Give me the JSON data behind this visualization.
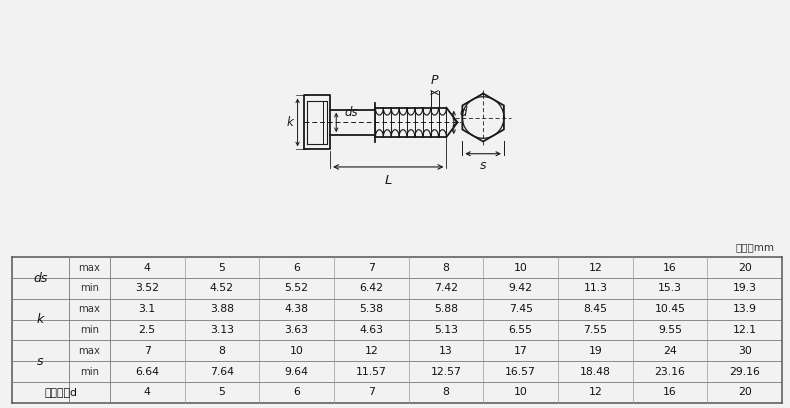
{
  "bg_color": "#f2f2f2",
  "line_color": "#1a1a1a",
  "unit_text": "单位：mm",
  "rows": [
    {
      "label": "ds",
      "sub": "max",
      "values": [
        "4",
        "5",
        "6",
        "7",
        "8",
        "10",
        "12",
        "16",
        "20"
      ]
    },
    {
      "label": "",
      "sub": "min",
      "values": [
        "3.52",
        "4.52",
        "5.52",
        "6.42",
        "7.42",
        "9.42",
        "11.3",
        "15.3",
        "19.3"
      ]
    },
    {
      "label": "k",
      "sub": "max",
      "values": [
        "3.1",
        "3.88",
        "4.38",
        "5.38",
        "5.88",
        "7.45",
        "8.45",
        "10.45",
        "13.9"
      ]
    },
    {
      "label": "",
      "sub": "min",
      "values": [
        "2.5",
        "3.13",
        "3.63",
        "4.63",
        "5.13",
        "6.55",
        "7.55",
        "9.55",
        "12.1"
      ]
    },
    {
      "label": "s",
      "sub": "max",
      "values": [
        "7",
        "8",
        "10",
        "12",
        "13",
        "17",
        "19",
        "24",
        "30"
      ]
    },
    {
      "label": "",
      "sub": "min",
      "values": [
        "6.64",
        "7.64",
        "9.64",
        "11.57",
        "12.57",
        "16.57",
        "18.48",
        "23.16",
        "29.16"
      ]
    },
    {
      "label": "公称直径d",
      "sub": "",
      "values": [
        "4",
        "5",
        "6",
        "7",
        "8",
        "10",
        "12",
        "16",
        "20"
      ]
    }
  ]
}
